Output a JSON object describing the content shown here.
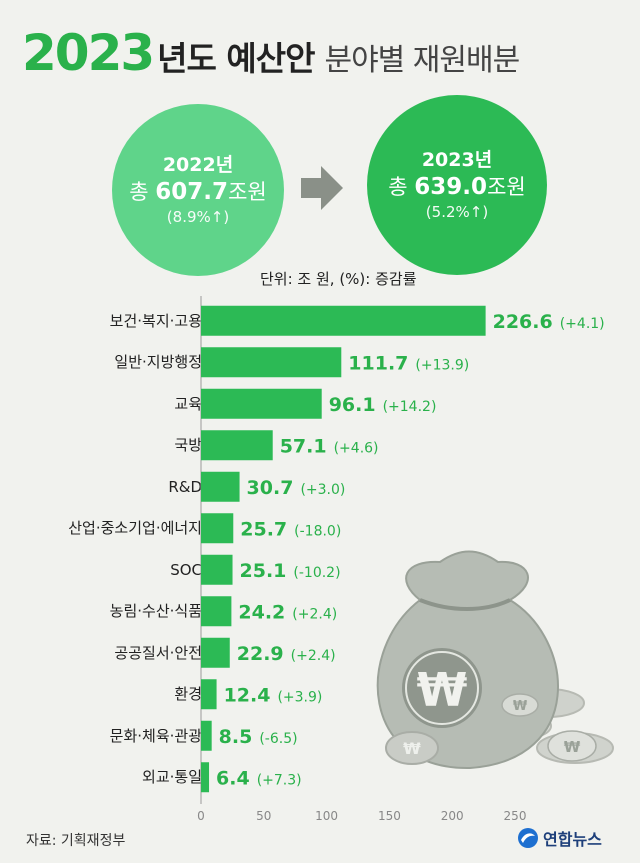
{
  "title": {
    "year": "2023",
    "main": "년도 예산안",
    "sub": "분야별 재원배분"
  },
  "left_circle": {
    "year": "2022년",
    "total_prefix": "총",
    "total_value": "607.7",
    "total_unit": "조원",
    "growth": "(8.9%↑)"
  },
  "right_circle": {
    "year": "2023년",
    "total_prefix": "총",
    "total_value": "639.0",
    "total_unit": "조원",
    "growth": "(5.2%↑)"
  },
  "unit_note": "단위: 조 원, (%): 증감률",
  "chart_data": {
    "type": "bar",
    "orientation": "horizontal",
    "categories": [
      "보건·복지·고용",
      "일반·지방행정",
      "교육",
      "국방",
      "R&D",
      "산업·중소기업·에너지",
      "SOC",
      "농림·수산·식품",
      "공공질서·안전",
      "환경",
      "문화·체육·관광",
      "외교·통일"
    ],
    "values": [
      226.6,
      111.7,
      96.1,
      57.1,
      30.7,
      25.7,
      25.1,
      24.2,
      22.9,
      12.4,
      8.5,
      6.4
    ],
    "value_labels": [
      "226.6",
      "111.7",
      "96.1",
      "57.1",
      "30.7",
      "25.7",
      "25.1",
      "24.2",
      "22.9",
      "12.4",
      "8.5",
      "6.4"
    ],
    "change_labels": [
      "(+4.1)",
      "(+13.9)",
      "(+14.2)",
      "(+4.6)",
      "(+3.0)",
      "(-18.0)",
      "(-10.2)",
      "(+2.4)",
      "(+2.4)",
      "(+3.9)",
      "(-6.5)",
      "(+7.3)"
    ],
    "xlim": [
      0,
      250
    ],
    "x_ticks": [
      "0",
      "50",
      "100",
      "150",
      "200",
      "250"
    ],
    "bar_color": "#2cba55",
    "value_color": "#2ab14b"
  },
  "footer": {
    "source": "자료: 기획재정부",
    "logo_text": "연합뉴스"
  },
  "colors": {
    "accent": "#2ab14b",
    "left_circle": "#5fd48a",
    "right_circle": "#2cba55",
    "background": "#f1f2ee"
  }
}
